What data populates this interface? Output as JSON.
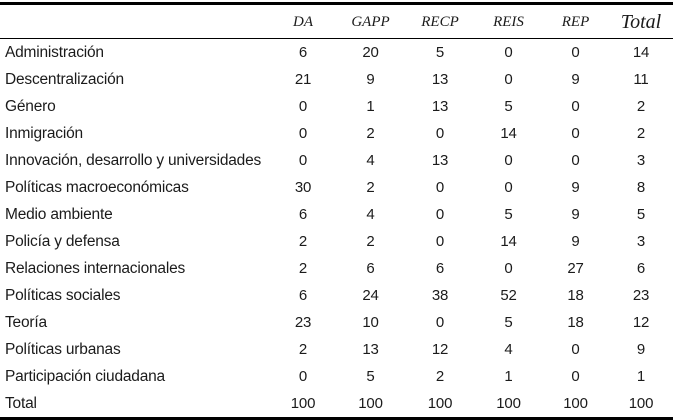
{
  "table": {
    "columns": [
      "DA",
      "GAPP",
      "RECP",
      "REIS",
      "REP",
      "Total"
    ],
    "rows": [
      {
        "label": "Administración",
        "values": [
          "6",
          "20",
          "5",
          "0",
          "0",
          "14"
        ]
      },
      {
        "label": "Descentralización",
        "values": [
          "21",
          "9",
          "13",
          "0",
          "9",
          "11"
        ]
      },
      {
        "label": "Género",
        "values": [
          "0",
          "1",
          "13",
          "5",
          "0",
          "2"
        ]
      },
      {
        "label": "Inmigración",
        "values": [
          "0",
          "2",
          "0",
          "14",
          "0",
          "2"
        ]
      },
      {
        "label": "Innovación, desarrollo y universidades",
        "values": [
          "0",
          "4",
          "13",
          "0",
          "0",
          "3"
        ]
      },
      {
        "label": "Políticas macroeconómicas",
        "values": [
          "30",
          "2",
          "0",
          "0",
          "9",
          "8"
        ]
      },
      {
        "label": "Medio ambiente",
        "values": [
          "6",
          "4",
          "0",
          "5",
          "9",
          "5"
        ]
      },
      {
        "label": "Policía y defensa",
        "values": [
          "2",
          "2",
          "0",
          "14",
          "9",
          "3"
        ]
      },
      {
        "label": "Relaciones internacionales",
        "values": [
          "2",
          "6",
          "6",
          "0",
          "27",
          "6"
        ]
      },
      {
        "label": "Políticas sociales",
        "values": [
          "6",
          "24",
          "38",
          "52",
          "18",
          "23"
        ]
      },
      {
        "label": "Teoría",
        "values": [
          "23",
          "10",
          "0",
          "5",
          "18",
          "12"
        ]
      },
      {
        "label": "Políticas urbanas",
        "values": [
          "2",
          "13",
          "12",
          "4",
          "0",
          "9"
        ]
      },
      {
        "label": "Participación ciudadana",
        "values": [
          "0",
          "5",
          "2",
          "1",
          "0",
          "1"
        ]
      },
      {
        "label": "Total",
        "values": [
          "100",
          "100",
          "100",
          "100",
          "100",
          "100"
        ]
      }
    ],
    "colors": {
      "rule": "#000000",
      "text": "#1b1b1b",
      "background": "#ffffff"
    }
  }
}
